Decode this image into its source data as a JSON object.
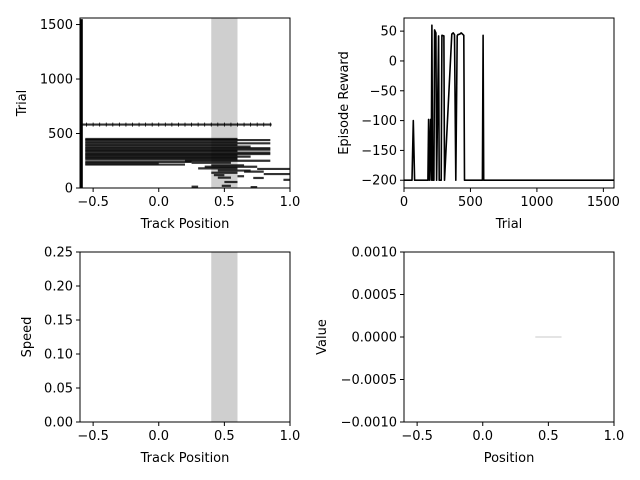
{
  "chart_data": [
    {
      "id": "track-trials",
      "type": "scatter",
      "xlabel": "Track Position",
      "ylabel": "Trial",
      "xlim": [
        -0.6,
        1.0
      ],
      "ylim": [
        0,
        1560
      ],
      "xticks": [
        -0.5,
        0.0,
        0.5,
        1.0
      ],
      "xtick_labels": [
        "−0.5",
        "0.0",
        "0.5",
        "1.0"
      ],
      "yticks": [
        0,
        500,
        1000,
        1500
      ],
      "ytick_labels": [
        "0",
        "500",
        "1000",
        "1500"
      ],
      "goal_band": [
        0.4,
        0.6
      ],
      "band_color": "#cfcfcf",
      "trace_color": "#000000",
      "segments": [
        {
          "x": [
            -0.6,
            0.86
          ],
          "y": 582
        },
        {
          "x": [
            -0.56,
            0.6
          ],
          "y": 450
        },
        {
          "x": [
            -0.56,
            0.85
          ],
          "y": 440
        },
        {
          "x": [
            -0.56,
            0.6
          ],
          "y": 425
        },
        {
          "x": [
            -0.56,
            0.85
          ],
          "y": 410
        },
        {
          "x": [
            -0.56,
            0.6
          ],
          "y": 395
        },
        {
          "x": [
            -0.56,
            0.7
          ],
          "y": 380
        },
        {
          "x": [
            -0.56,
            0.85
          ],
          "y": 365
        },
        {
          "x": [
            -0.56,
            0.85
          ],
          "y": 352
        },
        {
          "x": [
            -0.56,
            0.6
          ],
          "y": 340
        },
        {
          "x": [
            -0.56,
            0.85
          ],
          "y": 325
        },
        {
          "x": [
            -0.56,
            0.85
          ],
          "y": 312
        },
        {
          "x": [
            -0.56,
            0.6
          ],
          "y": 300
        },
        {
          "x": [
            -0.56,
            0.7
          ],
          "y": 288
        },
        {
          "x": [
            -0.56,
            0.6
          ],
          "y": 275
        },
        {
          "x": [
            -0.56,
            0.6
          ],
          "y": 262
        },
        {
          "x": [
            0.2,
            0.85
          ],
          "y": 250
        },
        {
          "x": [
            -0.56,
            0.25
          ],
          "y": 240
        },
        {
          "x": [
            0.25,
            0.55
          ],
          "y": 232
        },
        {
          "x": [
            -0.56,
            0.0
          ],
          "y": 225
        },
        {
          "x": [
            -0.56,
            0.2
          ],
          "y": 215
        },
        {
          "x": [
            0.4,
            0.65
          ],
          "y": 208
        },
        {
          "x": [
            0.35,
            0.75
          ],
          "y": 195
        },
        {
          "x": [
            0.3,
            0.6
          ],
          "y": 180
        },
        {
          "x": [
            0.75,
            1.0
          ],
          "y": 175
        },
        {
          "x": [
            0.45,
            0.7
          ],
          "y": 160
        },
        {
          "x": [
            0.65,
            0.8
          ],
          "y": 150
        },
        {
          "x": [
            0.4,
            0.6
          ],
          "y": 140
        },
        {
          "x": [
            0.8,
            1.0
          ],
          "y": 128
        },
        {
          "x": [
            0.42,
            0.5
          ],
          "y": 118
        },
        {
          "x": [
            0.6,
            0.65
          ],
          "y": 108
        },
        {
          "x": [
            0.45,
            0.55
          ],
          "y": 95
        },
        {
          "x": [
            0.72,
            0.8
          ],
          "y": 92
        },
        {
          "x": [
            0.95,
            1.0
          ],
          "y": 75
        },
        {
          "x": [
            0.5,
            0.6
          ],
          "y": 55
        },
        {
          "x": [
            0.48,
            0.55
          ],
          "y": 20
        },
        {
          "x": [
            0.25,
            0.3
          ],
          "y": 12
        },
        {
          "x": [
            0.7,
            0.75
          ],
          "y": 8
        }
      ],
      "left_edge_points": {
        "x": -0.59,
        "y_range": [
          0,
          1550
        ]
      }
    },
    {
      "id": "episode-reward",
      "type": "line",
      "xlabel": "Trial",
      "ylabel": "Episode Reward",
      "xlim": [
        0,
        1580
      ],
      "ylim": [
        -213,
        72
      ],
      "xticks": [
        0,
        500,
        1000,
        1500
      ],
      "xtick_labels": [
        "0",
        "500",
        "1000",
        "1500"
      ],
      "yticks": [
        -200,
        -150,
        -100,
        -50,
        0,
        50
      ],
      "ytick_labels": [
        "−200",
        "−150",
        "−100",
        "−50",
        "0",
        "50"
      ],
      "line_color": "#000000",
      "x": [
        0,
        60,
        70,
        80,
        180,
        185,
        190,
        200,
        205,
        210,
        215,
        225,
        230,
        240,
        245,
        260,
        265,
        280,
        285,
        300,
        305,
        360,
        370,
        380,
        390,
        400,
        405,
        420,
        430,
        450,
        455,
        460,
        465,
        470,
        590,
        595,
        600,
        605,
        1580
      ],
      "y": [
        -200,
        -200,
        -100,
        -200,
        -200,
        -98,
        -200,
        -98,
        -200,
        60,
        -200,
        -200,
        52,
        47,
        -200,
        42,
        -200,
        -200,
        43,
        42,
        -200,
        45,
        47,
        44,
        -200,
        42,
        44,
        45,
        47,
        43,
        -200,
        -200,
        -200,
        -200,
        -200,
        43,
        -200,
        -200,
        -200
      ]
    },
    {
      "id": "speed",
      "type": "line",
      "xlabel": "Track Position",
      "ylabel": "Speed",
      "xlim": [
        -0.6,
        1.0
      ],
      "ylim": [
        0.0,
        0.25
      ],
      "xticks": [
        -0.5,
        0.0,
        0.5,
        1.0
      ],
      "xtick_labels": [
        "−0.5",
        "0.0",
        "0.5",
        "1.0"
      ],
      "yticks": [
        0.0,
        0.05,
        0.1,
        0.15,
        0.2,
        0.25
      ],
      "ytick_labels": [
        "0.00",
        "0.05",
        "0.10",
        "0.15",
        "0.20",
        "0.25"
      ],
      "goal_band": [
        0.4,
        0.6
      ],
      "band_color": "#cfcfcf"
    },
    {
      "id": "value",
      "type": "line",
      "xlabel": "Position",
      "ylabel": "Value",
      "xlim": [
        -0.6,
        1.0
      ],
      "ylim": [
        -0.001,
        0.001
      ],
      "xticks": [
        -0.5,
        0.0,
        0.5,
        1.0
      ],
      "xtick_labels": [
        "−0.5",
        "0.0",
        "0.5",
        "1.0"
      ],
      "yticks": [
        -0.001,
        -0.0005,
        0.0,
        0.0005,
        0.001
      ],
      "ytick_labels": [
        "−0.0010",
        "−0.0005",
        "0.0000",
        "0.0005",
        "0.0010"
      ],
      "line_color": "#c8c8c8",
      "x": [
        0.4,
        0.6
      ],
      "y": [
        0.0,
        0.0
      ]
    }
  ]
}
